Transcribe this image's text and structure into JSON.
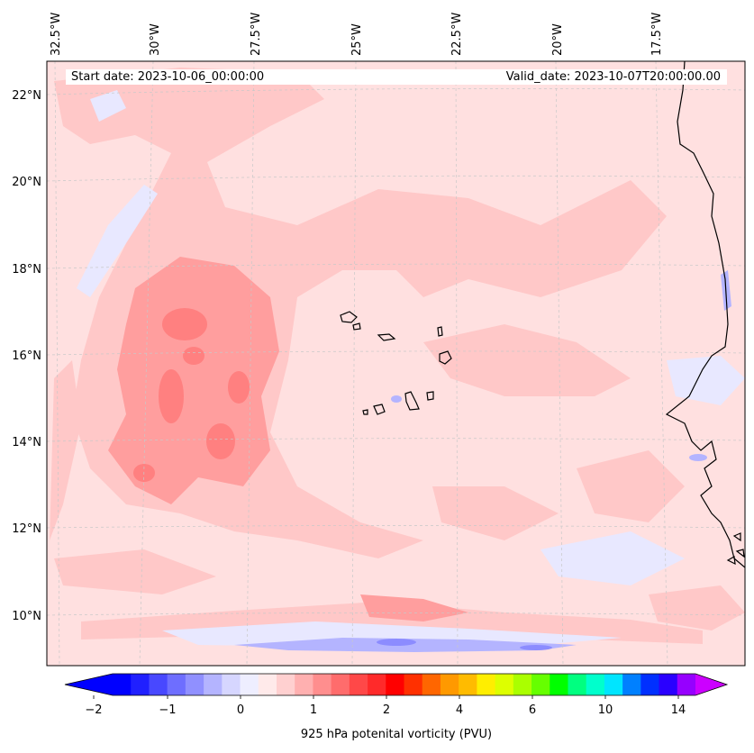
{
  "header": {
    "start_date": "Start date: 2023-10-06_00:00:00",
    "valid_date": "Valid_date: 2023-10-07T20:00:00.00"
  },
  "map": {
    "lon_labels": [
      "32.5°W",
      "30°W",
      "27.5°W",
      "25°W",
      "22.5°W",
      "20°W",
      "17.5°W"
    ],
    "lat_labels": [
      "22°N",
      "20°N",
      "18°N",
      "16°N",
      "14°N",
      "12°N",
      "10°N"
    ],
    "colors": {
      "background_pv": "#ffe0e0",
      "moderate_pv": "#ffc8c8",
      "high_pv": "#ff9e9e",
      "peak_pv": "#ff8080",
      "low_pv": "#e8e8ff",
      "negative_pv": "#b4b4ff",
      "coastline": "#000000",
      "gridline": "#c8c8c8"
    }
  },
  "colorbar": {
    "title": "925 hPa potenital vorticity (PVU)",
    "tick_labels": [
      "−2",
      "−1",
      "0",
      "1",
      "2",
      "4",
      "6",
      "10",
      "14"
    ],
    "colors": [
      "#0000ff",
      "#2020ff",
      "#4848ff",
      "#6e6eff",
      "#9090ff",
      "#b4b4ff",
      "#d6d6ff",
      "#eeeeff",
      "#ffeaea",
      "#ffd0d0",
      "#ffb0b0",
      "#ff8e8e",
      "#ff6c6c",
      "#ff4848",
      "#ff2a2a",
      "#ff0000",
      "#ff3000",
      "#ff6600",
      "#ff9900",
      "#ffbb00",
      "#ffee00",
      "#ddff00",
      "#aaff00",
      "#66ff00",
      "#00ff00",
      "#00ff80",
      "#00ffcc",
      "#00e5ff",
      "#0080ff",
      "#0030ff",
      "#2a00ff",
      "#9600ff"
    ],
    "end_low_color": "#0000ff",
    "end_high_color": "#cc00ff"
  }
}
